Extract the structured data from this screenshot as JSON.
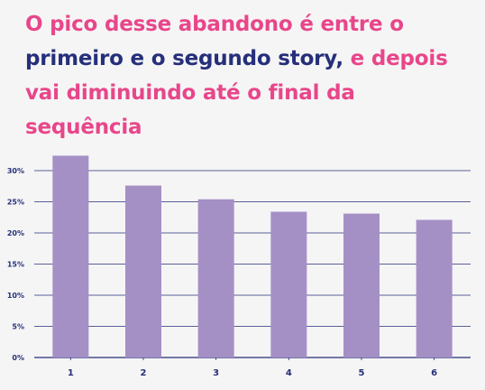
{
  "headline": {
    "part1": "O pico desse abandono é entre o",
    "part2": "primeiro e o segundo story,",
    "part3": "e depois vai diminuindo até o final da sequência"
  },
  "colors": {
    "accent": "#e8468a",
    "navy": "#262f7a",
    "bar": "#a590c6",
    "background": "#f5f5f5"
  },
  "chart_data": {
    "type": "bar",
    "categories": [
      "1",
      "2",
      "3",
      "4",
      "5",
      "6"
    ],
    "values": [
      32.4,
      27.6,
      25.4,
      23.4,
      23.1,
      22.1
    ],
    "ylim": [
      0,
      30
    ],
    "yticks": [
      "0%",
      "5%",
      "10%",
      "15%",
      "20%",
      "25%",
      "30%"
    ],
    "grid": true,
    "title": "",
    "xlabel": "",
    "ylabel": ""
  }
}
